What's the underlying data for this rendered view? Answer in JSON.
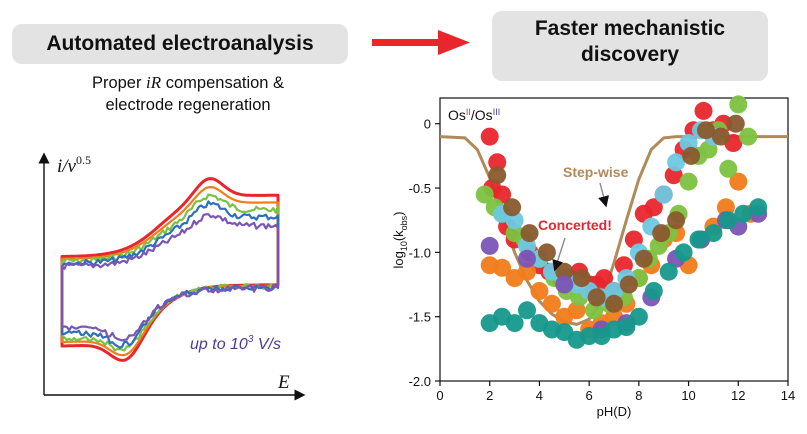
{
  "header": {
    "left_title": "Automated electroanalysis",
    "right_title_line1": "Faster mechanistic",
    "right_title_line2": "discovery",
    "subtitle_line1_prefix": "Proper ",
    "subtitle_line1_em": "iR",
    "subtitle_line1_suffix": " compensation &",
    "subtitle_line2": "electrode regeneration"
  },
  "colors": {
    "arrow": "#e8262c",
    "cv_annotation": "#4a3a96"
  },
  "chart_data": [
    {
      "type": "line",
      "ylabel_main": "i/ν",
      "ylabel_exp": "0.5",
      "xlabel": "E",
      "annotation_prefix": "up to 10",
      "annotation_exp": "3",
      "annotation_suffix": " V/s",
      "series": [
        {
          "color": "#e8262c",
          "scale": 1.0
        },
        {
          "color": "#f07c1a",
          "scale": 0.92
        },
        {
          "color": "#7cc241",
          "scale": 0.84
        },
        {
          "color": "#2c6fbf",
          "scale": 0.76
        },
        {
          "color": "#7a55b5",
          "scale": 0.66
        }
      ]
    },
    {
      "type": "scatter",
      "title_os1": "Os",
      "title_os1_sup": "II",
      "title_sep": "/Os",
      "title_os2_sup": "III",
      "xlabel": "pH(D)",
      "ylabel_main": "log",
      "ylabel_sub1": "10",
      "ylabel_mid": "(k",
      "ylabel_sub2": "obs",
      "ylabel_end": ")",
      "xlim": [
        0,
        14
      ],
      "ylim": [
        -2.0,
        0.2
      ],
      "xticks": [
        "0",
        "2",
        "4",
        "6",
        "8",
        "10",
        "12",
        "14"
      ],
      "yticks": [
        "0",
        "-0.5",
        "-1.0",
        "-1.5",
        "-2.0"
      ],
      "annotations": {
        "stepwise": "Step-wise",
        "concerted": "Concerted!"
      },
      "model_curve": {
        "color": "#b08a5a",
        "x": [
          0,
          1.0,
          1.5,
          2.0,
          2.5,
          3.0,
          3.5,
          4.0,
          4.5,
          5.0,
          5.5,
          6.0,
          6.5,
          7.0,
          7.5,
          8.0,
          8.5,
          9.0,
          9.5,
          10.0,
          10.5,
          11.0,
          12.0,
          13.0,
          14.0
        ],
        "y": [
          -0.1,
          -0.11,
          -0.2,
          -0.42,
          -0.72,
          -1.0,
          -1.22,
          -1.38,
          -1.48,
          -1.54,
          -1.56,
          -1.52,
          -1.38,
          -1.08,
          -0.75,
          -0.43,
          -0.2,
          -0.11,
          -0.1,
          -0.1,
          -0.1,
          -0.1,
          -0.1,
          -0.1,
          -0.1
        ]
      },
      "series": [
        {
          "color": "#e8262c",
          "x": [
            2.0,
            2.1,
            2.3,
            2.5,
            2.7,
            3.0,
            3.6,
            4.0,
            4.4,
            4.8,
            5.2,
            5.6,
            6.0,
            6.3,
            6.6,
            7.0,
            7.4,
            7.8,
            8.2,
            8.6,
            9.0,
            9.4,
            9.8,
            10.2,
            10.6,
            11.0,
            11.4,
            11.8
          ],
          "y": [
            -0.1,
            -0.5,
            -0.3,
            -0.55,
            -0.8,
            -0.9,
            -1.0,
            -1.1,
            -1.15,
            -1.2,
            -1.2,
            -1.15,
            -1.25,
            -1.25,
            -1.2,
            -1.3,
            -1.1,
            -0.9,
            -0.7,
            -0.65,
            -0.55,
            -0.4,
            -0.2,
            -0.05,
            0.1,
            -0.05,
            0.0,
            -0.15
          ]
        },
        {
          "color": "#f07c1a",
          "x": [
            2.0,
            2.5,
            3.0,
            3.5,
            4.0,
            4.5,
            5.0,
            5.5,
            6.0,
            6.5,
            7.0,
            7.5,
            8.0,
            8.5,
            9.0,
            9.5,
            10.0,
            10.5,
            11.0,
            11.5,
            12.0,
            12.5
          ],
          "y": [
            -1.1,
            -1.12,
            -1.2,
            -1.15,
            -1.3,
            -1.4,
            -1.5,
            -1.45,
            -1.6,
            -1.55,
            -1.5,
            -1.4,
            -1.2,
            -1.1,
            -0.9,
            -0.85,
            -1.1,
            -0.9,
            -0.8,
            -0.65,
            -0.45,
            -0.7
          ]
        },
        {
          "color": "#7cc241",
          "x": [
            1.8,
            2.2,
            2.5,
            3.0,
            3.4,
            4.0,
            4.6,
            5.1,
            5.6,
            6.2,
            6.8,
            7.4,
            8.0,
            8.4,
            8.8,
            9.2,
            9.6,
            10.0,
            10.4,
            10.8,
            11.2,
            11.6,
            12.0,
            12.4
          ],
          "y": [
            -0.55,
            -0.65,
            -0.7,
            -0.85,
            -0.9,
            -1.05,
            -1.2,
            -1.3,
            -1.35,
            -1.45,
            -1.4,
            -1.35,
            -1.2,
            -1.05,
            -0.95,
            -0.85,
            -0.7,
            -0.45,
            -0.25,
            -0.2,
            -0.05,
            -0.35,
            0.15,
            -0.1
          ]
        },
        {
          "color": "#6ec8e0",
          "x": [
            2.5,
            3.0,
            3.5,
            4.0,
            4.5,
            5.0,
            5.5,
            6.0,
            6.5,
            7.0,
            7.5,
            8.0,
            8.5,
            9.0,
            9.5,
            10.0,
            10.5,
            11.0
          ],
          "y": [
            -0.7,
            -0.75,
            -0.95,
            -1.05,
            -1.15,
            -1.2,
            -1.25,
            -1.3,
            -1.35,
            -1.3,
            -1.2,
            -1.0,
            -0.8,
            -0.55,
            -0.3,
            -0.15,
            -0.05,
            -0.1
          ]
        },
        {
          "color": "#8a5a2e",
          "x": [
            2.3,
            2.9,
            3.6,
            4.3,
            5.0,
            5.7,
            6.3,
            7.0,
            7.6,
            8.2,
            8.9,
            9.5,
            10.1,
            10.7,
            11.3,
            11.9
          ],
          "y": [
            -0.4,
            -0.65,
            -0.85,
            -1.0,
            -1.15,
            -1.2,
            -1.35,
            -1.4,
            -1.25,
            -1.05,
            -0.85,
            -0.75,
            -0.25,
            -0.05,
            -0.1,
            0.0
          ]
        },
        {
          "color": "#7a55b5",
          "x": [
            2.0,
            3.5,
            5.0,
            6.5,
            7.5,
            8.5,
            9.5,
            10.5,
            11.5,
            12.0,
            12.8
          ],
          "y": [
            -0.95,
            -1.05,
            -1.25,
            -1.6,
            -1.55,
            -1.35,
            -1.05,
            -0.9,
            -0.75,
            -0.8,
            -0.7
          ]
        },
        {
          "color": "#16988c",
          "x": [
            2.0,
            2.5,
            3.0,
            3.5,
            4.0,
            4.5,
            5.0,
            5.5,
            6.0,
            6.5,
            7.0,
            7.5,
            8.0,
            8.6,
            9.2,
            9.8,
            10.4,
            11.0,
            11.6,
            12.2,
            12.8
          ],
          "y": [
            -1.55,
            -1.5,
            -1.55,
            -1.45,
            -1.55,
            -1.6,
            -1.62,
            -1.68,
            -1.65,
            -1.65,
            -1.6,
            -1.58,
            -1.5,
            -1.3,
            -1.15,
            -1.0,
            -0.9,
            -0.85,
            -0.75,
            -0.7,
            -0.65
          ]
        }
      ]
    }
  ]
}
